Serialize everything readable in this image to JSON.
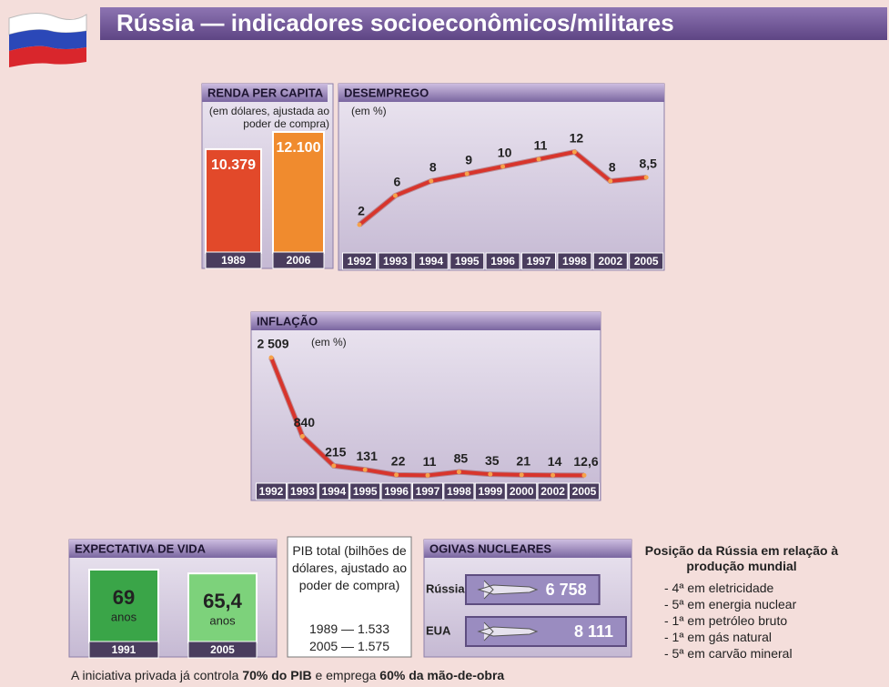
{
  "title": "Rússia — indicadores socioeconômicos/militares",
  "chart_data": [
    {
      "type": "bar",
      "title": "RENDA PER CAPITA",
      "subtitle": "(em dólares, ajustada ao poder de compra)",
      "categories": [
        "1989",
        "2006"
      ],
      "values": [
        10379,
        12100
      ],
      "value_labels": [
        "10.379",
        "12.100"
      ],
      "colors": [
        "#e2492a",
        "#f08b2e"
      ]
    },
    {
      "type": "line",
      "title": "DESEMPREGO",
      "subtitle": "(em %)",
      "categories": [
        "1992",
        "1993",
        "1994",
        "1995",
        "1996",
        "1997",
        "1998",
        "2002",
        "2005"
      ],
      "values": [
        2,
        6,
        8,
        9,
        10,
        11,
        12,
        8,
        8.5
      ],
      "value_labels": [
        "2",
        "6",
        "8",
        "9",
        "10",
        "11",
        "12",
        "8",
        "8,5"
      ],
      "color": "#d8352c"
    },
    {
      "type": "line",
      "title": "INFLAÇÃO",
      "subtitle": "(em %)",
      "categories": [
        "1992",
        "1993",
        "1994",
        "1995",
        "1996",
        "1997",
        "1998",
        "1999",
        "2000",
        "2002",
        "2005"
      ],
      "values": [
        2509,
        840,
        215,
        131,
        22,
        11,
        85,
        35,
        21,
        14,
        12.6
      ],
      "value_labels": [
        "2 509",
        "840",
        "215",
        "131",
        "22",
        "11",
        "85",
        "35",
        "21",
        "14",
        "12,6"
      ],
      "color": "#d8352c"
    },
    {
      "type": "bar",
      "title": "EXPECTATIVA DE VIDA",
      "categories": [
        "1991",
        "2005"
      ],
      "values": [
        69,
        65.4
      ],
      "value_labels": [
        "69",
        "65,4"
      ],
      "unit": "anos",
      "colors": [
        "#3aa548",
        "#7dd27b"
      ]
    },
    {
      "type": "bar",
      "orientation": "horizontal",
      "title": "OGIVAS NUCLEARES",
      "categories": [
        "Rússia",
        "EUA"
      ],
      "values": [
        6758,
        8111
      ],
      "value_labels": [
        "6 758",
        "8 111"
      ],
      "color": "#9a8cc0"
    }
  ],
  "pib": {
    "title": "PIB total (bilhões de dólares, ajustado ao poder de compra)",
    "rows": [
      "1989 — 1.533",
      "2005 — 1.575"
    ]
  },
  "ranking": {
    "title": "Posição da Rússia em relação à produção mundial",
    "items": [
      "- 4ª em eletricidade",
      "- 5ª em energia nuclear",
      "- 1ª em petróleo bruto",
      "- 1ª em gás natural",
      "- 5ª em carvão mineral"
    ]
  },
  "footer": [
    "A iniciativa privada já controla ",
    "70% do PIB",
    " e emprega ",
    "60% da mão-de-obra"
  ]
}
